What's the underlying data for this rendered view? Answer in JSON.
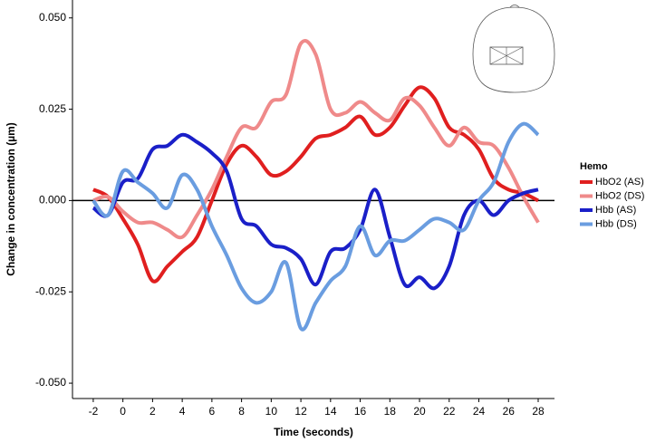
{
  "chart_data": {
    "type": "line",
    "x_label": "Time (seconds)",
    "y_label": "Change in concentration (µm)",
    "legend_title": "Hemo",
    "x": [
      -2,
      -1,
      0,
      1,
      2,
      3,
      4,
      5,
      6,
      7,
      8,
      9,
      10,
      11,
      12,
      13,
      14,
      15,
      16,
      17,
      18,
      19,
      20,
      21,
      22,
      23,
      24,
      25,
      26,
      27,
      28
    ],
    "series": [
      {
        "name": "HbO2 (AS)",
        "color": "#e01f1f",
        "values": [
          0.003,
          0.001,
          -0.005,
          -0.012,
          -0.022,
          -0.018,
          -0.014,
          -0.01,
          0.0,
          0.01,
          0.015,
          0.012,
          0.007,
          0.008,
          0.012,
          0.017,
          0.018,
          0.02,
          0.023,
          0.018,
          0.02,
          0.026,
          0.031,
          0.028,
          0.02,
          0.018,
          0.014,
          0.006,
          0.003,
          0.002,
          0.0
        ]
      },
      {
        "name": "HbO2 (DS)",
        "color": "#ef8a8a",
        "values": [
          0.0,
          0.001,
          -0.003,
          -0.006,
          -0.006,
          -0.008,
          -0.01,
          -0.004,
          0.003,
          0.012,
          0.02,
          0.02,
          0.027,
          0.029,
          0.043,
          0.04,
          0.025,
          0.024,
          0.027,
          0.024,
          0.022,
          0.028,
          0.026,
          0.02,
          0.015,
          0.02,
          0.016,
          0.015,
          0.009,
          0.001,
          -0.006
        ]
      },
      {
        "name": "Hbb (AS)",
        "color": "#1a1fc8",
        "values": [
          -0.002,
          -0.004,
          0.005,
          0.006,
          0.014,
          0.015,
          0.018,
          0.016,
          0.013,
          0.008,
          -0.005,
          -0.007,
          -0.012,
          -0.013,
          -0.016,
          -0.023,
          -0.014,
          -0.013,
          -0.008,
          0.003,
          -0.01,
          -0.023,
          -0.021,
          -0.024,
          -0.018,
          -0.004,
          0.0,
          -0.004,
          0.0,
          0.002,
          0.003
        ]
      },
      {
        "name": "Hbb (DS)",
        "color": "#6a9de0",
        "values": [
          0.0,
          -0.004,
          0.008,
          0.005,
          0.002,
          -0.002,
          0.007,
          0.003,
          -0.007,
          -0.015,
          -0.024,
          -0.028,
          -0.025,
          -0.017,
          -0.035,
          -0.028,
          -0.022,
          -0.018,
          -0.007,
          -0.015,
          -0.011,
          -0.011,
          -0.008,
          -0.005,
          -0.006,
          -0.008,
          0.0,
          0.005,
          0.016,
          0.021,
          0.018
        ]
      }
    ],
    "xlim": [
      -3.4,
      29.1
    ],
    "ylim": [
      -0.0542,
      0.0549
    ],
    "xticks": [
      -2,
      0,
      2,
      4,
      6,
      8,
      10,
      12,
      14,
      16,
      18,
      20,
      22,
      24,
      26,
      28
    ],
    "yticks": [
      {
        "value": 0.05,
        "label": "0.050"
      },
      {
        "value": 0.025,
        "label": "0.025"
      },
      {
        "value": 0,
        "label": "0.000"
      },
      {
        "value": -0.025,
        "label": "-0.025"
      },
      {
        "value": -0.05,
        "label": "-0.050"
      }
    ],
    "zero_line": true
  }
}
